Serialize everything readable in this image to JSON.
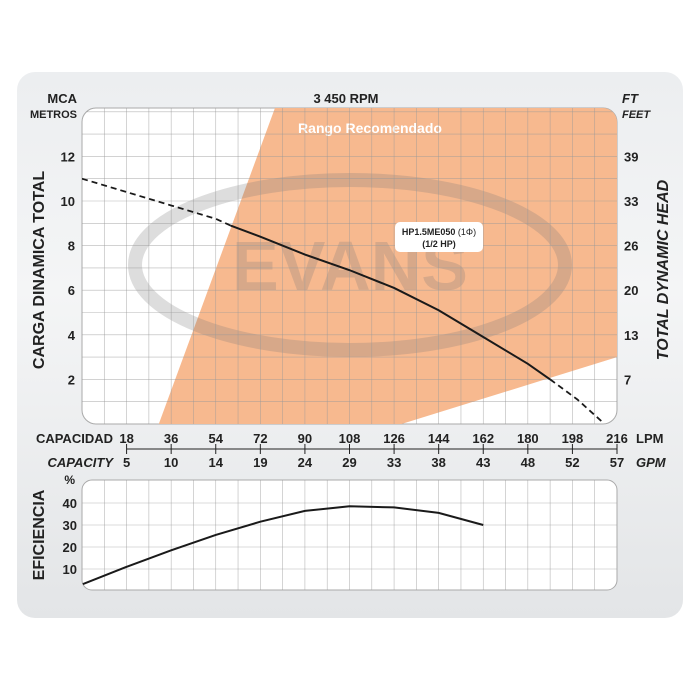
{
  "chart_data": [
    {
      "type": "line",
      "title": "3 450 RPM",
      "ylabel": "CARGA  DINAMICA  TOTAL",
      "ylabel_unit": "MCA",
      "ylabel_unit_sub": "METROS",
      "y2label": "TOTAL  DYNAMIC  HEAD",
      "y2label_unit": "FT",
      "y2label_unit_sub": "FEET",
      "xlabel": "CAPACIDAD",
      "xlabel_unit": "LPM",
      "x2label": "CAPACITY",
      "x2label_unit": "GPM",
      "xlim": [
        0,
        216
      ],
      "ylim": [
        0,
        14.2
      ],
      "grid": true,
      "x_ticks": [
        18,
        36,
        54,
        72,
        90,
        108,
        126,
        144,
        162,
        180,
        198,
        216
      ],
      "x2_ticks": [
        "5",
        "10",
        "14",
        "19",
        "24",
        "29",
        "33",
        "38",
        "43",
        "48",
        "52",
        "57"
      ],
      "y_ticks": [
        2,
        4,
        6,
        8,
        10,
        12
      ],
      "y2_ticks": [
        "7",
        "13",
        "20",
        "26",
        "33",
        "39"
      ],
      "recommended_range": {
        "label": "Rango Recomendado",
        "color": "#f7b98f",
        "polygon": [
          [
            31,
            0
          ],
          [
            78,
            14.2
          ],
          [
            216,
            14.2
          ],
          [
            216,
            3.0
          ],
          [
            129,
            0
          ]
        ]
      },
      "watermark": "EVANS",
      "series": [
        {
          "name": "HP1.5ME050",
          "label_line1": "HP1.5ME050",
          "label_phase": "(1Φ)",
          "label_line2": "(1/2 HP)",
          "color": "#1a1a1a",
          "x": [
            0,
            18,
            36,
            54,
            60,
            72,
            90,
            108,
            126,
            144,
            162,
            180,
            189,
            200,
            210
          ],
          "y": [
            11.0,
            10.4,
            9.8,
            9.2,
            8.9,
            8.4,
            7.6,
            6.9,
            6.1,
            5.1,
            3.9,
            2.7,
            2.0,
            1.1,
            0.1
          ],
          "dashed_before_x": 60,
          "dashed_after_x": 189
        }
      ]
    },
    {
      "type": "line",
      "ylabel": "EFICIENCIA",
      "ylabel_unit": "%",
      "xlim": [
        0,
        216
      ],
      "ylim": [
        0,
        45
      ],
      "grid": true,
      "y_ticks": [
        10,
        20,
        30,
        40
      ],
      "series": [
        {
          "color": "#1a1a1a",
          "x": [
            0,
            18,
            36,
            54,
            72,
            90,
            108,
            126,
            144,
            162
          ],
          "y": [
            3,
            11,
            18.5,
            25.5,
            31.5,
            36.4,
            38.5,
            38,
            35.5,
            30
          ]
        }
      ]
    }
  ]
}
